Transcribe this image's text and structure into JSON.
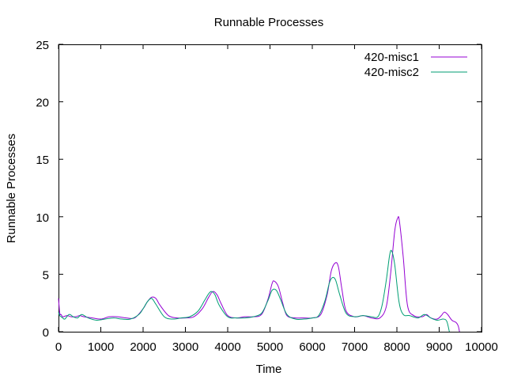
{
  "chart_data": {
    "type": "line",
    "title": "Runnable Processes",
    "xlabel": "Time",
    "ylabel": "Runnable Processes",
    "xlim": [
      0,
      10000
    ],
    "ylim": [
      0,
      25
    ],
    "x_ticks": [
      0,
      1000,
      2000,
      3000,
      4000,
      5000,
      6000,
      7000,
      8000,
      9000,
      10000
    ],
    "y_ticks": [
      0,
      5,
      10,
      15,
      20,
      25
    ],
    "grid": false,
    "legend_position": "top-right",
    "series": [
      {
        "name": "420-misc1",
        "color": "#9400d3",
        "x": [
          0,
          30,
          60,
          100,
          200,
          300,
          400,
          500,
          600,
          800,
          1000,
          1200,
          1400,
          1600,
          1800,
          2000,
          2100,
          2200,
          2300,
          2400,
          2600,
          2800,
          3000,
          3200,
          3400,
          3550,
          3650,
          3750,
          3850,
          4000,
          4200,
          4400,
          4600,
          4800,
          4950,
          5050,
          5100,
          5200,
          5300,
          5400,
          5600,
          5800,
          6000,
          6200,
          6350,
          6450,
          6550,
          6620,
          6700,
          6800,
          7000,
          7200,
          7400,
          7600,
          7750,
          7850,
          7950,
          8020,
          8060,
          8150,
          8250,
          8400,
          8600,
          8700,
          8800,
          8950,
          9050,
          9120,
          9200,
          9300,
          9400,
          9450,
          9480
        ],
        "values": [
          2.9,
          1.6,
          1.5,
          1.3,
          1.4,
          1.3,
          1.3,
          1.4,
          1.3,
          1.2,
          1.1,
          1.3,
          1.3,
          1.2,
          1.2,
          2.0,
          2.6,
          3.0,
          2.9,
          2.3,
          1.4,
          1.2,
          1.2,
          1.3,
          2.0,
          3.0,
          3.5,
          3.2,
          2.4,
          1.4,
          1.2,
          1.3,
          1.3,
          1.5,
          2.8,
          4.2,
          4.4,
          3.9,
          2.5,
          1.4,
          1.2,
          1.2,
          1.2,
          1.5,
          3.2,
          5.3,
          6.0,
          5.6,
          3.7,
          1.8,
          1.3,
          1.4,
          1.2,
          1.2,
          2.2,
          5.0,
          8.8,
          9.9,
          9.6,
          6.5,
          2.3,
          1.4,
          1.3,
          1.5,
          1.2,
          1.1,
          1.4,
          1.7,
          1.5,
          1.0,
          0.8,
          0.5,
          0.0
        ]
      },
      {
        "name": "420-misc2",
        "color": "#009e73",
        "x": [
          0,
          30,
          60,
          100,
          150,
          250,
          350,
          450,
          550,
          700,
          900,
          1100,
          1300,
          1500,
          1700,
          1900,
          2000,
          2100,
          2200,
          2300,
          2500,
          2700,
          2900,
          3100,
          3300,
          3450,
          3550,
          3620,
          3700,
          3800,
          4000,
          4200,
          4400,
          4600,
          4800,
          4950,
          5050,
          5150,
          5250,
          5400,
          5600,
          5800,
          6000,
          6150,
          6300,
          6400,
          6470,
          6550,
          6650,
          6800,
          7000,
          7200,
          7400,
          7550,
          7650,
          7750,
          7830,
          7880,
          7950,
          8050,
          8150,
          8300,
          8500,
          8650,
          8800,
          8950,
          9100,
          9180,
          9240
        ],
        "values": [
          1.7,
          1.4,
          1.3,
          1.2,
          1.1,
          1.5,
          1.3,
          1.2,
          1.5,
          1.2,
          1.0,
          1.1,
          1.2,
          1.1,
          1.1,
          1.5,
          2.0,
          2.6,
          2.9,
          2.4,
          1.3,
          1.1,
          1.2,
          1.3,
          1.8,
          2.7,
          3.3,
          3.5,
          3.2,
          2.3,
          1.3,
          1.2,
          1.2,
          1.3,
          1.6,
          2.7,
          3.6,
          3.6,
          2.8,
          1.5,
          1.1,
          1.1,
          1.2,
          1.4,
          2.7,
          4.2,
          4.7,
          4.5,
          3.2,
          1.6,
          1.3,
          1.4,
          1.3,
          1.3,
          2.3,
          4.5,
          6.7,
          7.0,
          5.8,
          2.6,
          1.5,
          1.4,
          1.2,
          1.5,
          1.2,
          1.0,
          1.1,
          0.9,
          0.0
        ]
      }
    ]
  }
}
